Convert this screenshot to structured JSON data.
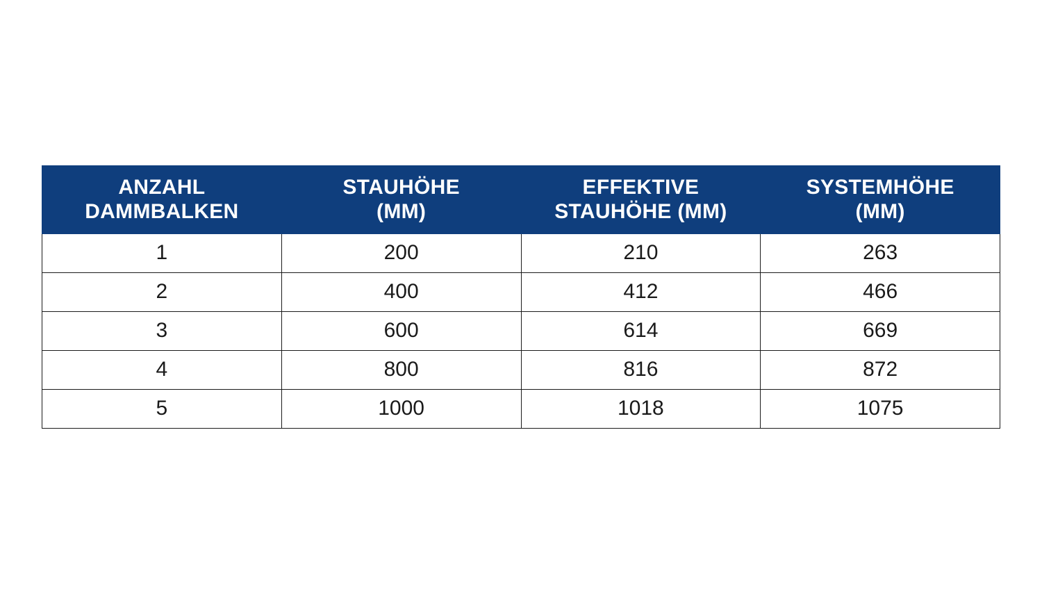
{
  "table": {
    "type": "table",
    "header_bg": "#0f3e7d",
    "header_fg": "#ffffff",
    "cell_bg": "#ffffff",
    "cell_fg": "#1a1a1a",
    "border_color": "#1a1a1a",
    "header_fontsize": 30,
    "cell_fontsize": 30,
    "header_fontweight": 700,
    "cell_fontweight": 400,
    "columns": [
      {
        "line1": "ANZAHL",
        "line2": "DAMMBALKEN",
        "width_pct": 25
      },
      {
        "line1": "STAUHÖHE",
        "line2": "(MM)",
        "width_pct": 25
      },
      {
        "line1": "EFFEKTIVE",
        "line2": "STAUHÖHE (MM)",
        "width_pct": 25
      },
      {
        "line1": "SYSTEMHÖHE",
        "line2": "(MM)",
        "width_pct": 25
      }
    ],
    "rows": [
      [
        "1",
        "200",
        "210",
        "263"
      ],
      [
        "2",
        "400",
        "412",
        "466"
      ],
      [
        "3",
        "600",
        "614",
        "669"
      ],
      [
        "4",
        "800",
        "816",
        "872"
      ],
      [
        "5",
        "1000",
        "1018",
        "1075"
      ]
    ]
  }
}
